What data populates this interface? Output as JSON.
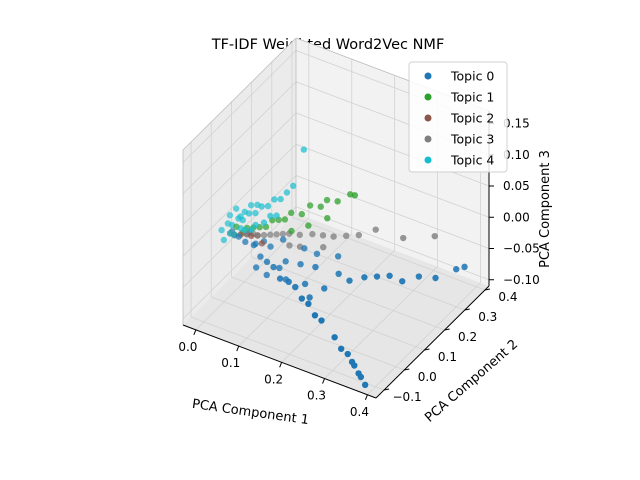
{
  "chart_data": {
    "type": "scatter",
    "projection": "3d",
    "title": "TF-IDF Weighted Word2Vec NMF",
    "xlabel": "PCA Component 1",
    "ylabel": "PCA Component 2",
    "zlabel": "PCA Component 3",
    "xlim": [
      -0.03,
      0.42
    ],
    "ylim": [
      -0.14,
      0.42
    ],
    "zlim": [
      -0.11,
      0.17
    ],
    "xticks": [
      "0.0",
      "0.1",
      "0.2",
      "0.3",
      "0.4"
    ],
    "yticks": [
      "−0.1",
      "0.0",
      "0.1",
      "0.2",
      "0.3",
      "0.4"
    ],
    "zticks": [
      "−0.10",
      "−0.05",
      "0.00",
      "0.05",
      "0.10",
      "0.15"
    ],
    "grid": true,
    "legend_position": "top-right",
    "series": [
      {
        "name": "Topic 0",
        "color": "#1f77b4",
        "points": [
          [
            0.3,
            -0.09,
            -0.06
          ],
          [
            0.32,
            -0.1,
            -0.07
          ],
          [
            0.34,
            -0.11,
            -0.07
          ],
          [
            0.35,
            -0.11,
            -0.08
          ],
          [
            0.36,
            -0.12,
            -0.08
          ],
          [
            0.37,
            -0.12,
            -0.09
          ],
          [
            0.38,
            -0.13,
            -0.09
          ],
          [
            0.39,
            -0.13,
            -0.1
          ],
          [
            0.26,
            -0.07,
            -0.05
          ],
          [
            0.24,
            -0.06,
            -0.05
          ],
          [
            0.22,
            -0.05,
            -0.04
          ],
          [
            0.2,
            -0.04,
            -0.04
          ],
          [
            0.18,
            -0.03,
            -0.03
          ],
          [
            0.16,
            -0.02,
            -0.03
          ],
          [
            0.14,
            -0.02,
            -0.03
          ],
          [
            0.12,
            -0.01,
            -0.02
          ],
          [
            0.1,
            0.0,
            -0.02
          ],
          [
            0.08,
            0.01,
            -0.02
          ],
          [
            0.06,
            0.02,
            -0.01
          ],
          [
            0.04,
            0.02,
            -0.01
          ],
          [
            0.02,
            0.03,
            -0.01
          ],
          [
            0.01,
            0.03,
            -0.01
          ],
          [
            0.0,
            0.04,
            -0.01
          ],
          [
            0.28,
            0.1,
            -0.03
          ],
          [
            0.3,
            0.12,
            -0.03
          ],
          [
            0.32,
            0.14,
            -0.03
          ],
          [
            0.34,
            0.16,
            -0.04
          ],
          [
            0.36,
            0.2,
            -0.04
          ],
          [
            0.38,
            0.24,
            -0.05
          ],
          [
            0.4,
            0.3,
            -0.05
          ],
          [
            0.41,
            0.32,
            -0.05
          ],
          [
            0.12,
            0.05,
            -0.03
          ],
          [
            0.15,
            0.06,
            -0.03
          ],
          [
            0.18,
            0.07,
            -0.03
          ],
          [
            0.08,
            0.06,
            -0.02
          ],
          [
            0.05,
            0.05,
            -0.02
          ],
          [
            0.1,
            0.08,
            -0.01
          ],
          [
            0.14,
            0.1,
            -0.02
          ],
          [
            0.16,
            0.12,
            -0.03
          ],
          [
            0.2,
            0.14,
            -0.03
          ],
          [
            0.22,
            0.1,
            -0.04
          ],
          [
            0.25,
            0.09,
            -0.04
          ],
          [
            0.11,
            0.04,
            -0.04
          ],
          [
            0.13,
            0.03,
            -0.05
          ],
          [
            0.09,
            0.02,
            -0.05
          ],
          [
            0.07,
            0.01,
            -0.04
          ],
          [
            0.17,
            0.04,
            -0.05
          ],
          [
            0.21,
            0.05,
            -0.05
          ],
          [
            0.19,
            0.02,
            -0.06
          ],
          [
            0.06,
            0.07,
            -0.02
          ],
          [
            0.03,
            0.06,
            -0.01
          ]
        ]
      },
      {
        "name": "Topic 1",
        "color": "#2ca02c",
        "points": [
          [
            0.2,
            0.2,
            0.05
          ],
          [
            0.18,
            0.18,
            0.04
          ],
          [
            0.16,
            0.17,
            0.04
          ],
          [
            0.15,
            0.16,
            0.03
          ],
          [
            0.13,
            0.15,
            0.03
          ],
          [
            0.12,
            0.13,
            0.02
          ],
          [
            0.1,
            0.12,
            0.02
          ],
          [
            0.09,
            0.11,
            0.01
          ],
          [
            0.08,
            0.1,
            0.01
          ],
          [
            0.07,
            0.09,
            0.01
          ],
          [
            0.06,
            0.08,
            0.0
          ],
          [
            0.05,
            0.07,
            0.0
          ],
          [
            0.04,
            0.06,
            0.0
          ],
          [
            0.03,
            0.05,
            0.0
          ],
          [
            0.02,
            0.05,
            -0.01
          ],
          [
            0.01,
            0.04,
            0.0
          ],
          [
            0.11,
            0.1,
            0.0
          ],
          [
            0.14,
            0.12,
            0.01
          ],
          [
            0.17,
            0.15,
            0.02
          ],
          [
            0.22,
            0.18,
            0.06
          ]
        ]
      },
      {
        "name": "Topic 2",
        "color": "#8c564b",
        "points": [
          [
            0.02,
            0.04,
            -0.01
          ],
          [
            0.03,
            0.05,
            -0.01
          ],
          [
            0.04,
            0.05,
            -0.01
          ],
          [
            0.05,
            0.06,
            -0.01
          ],
          [
            0.01,
            0.03,
            -0.01
          ],
          [
            0.06,
            0.06,
            -0.02
          ],
          [
            0.0,
            0.03,
            -0.01
          ]
        ]
      },
      {
        "name": "Topic 3",
        "color": "#7f7f7f",
        "points": [
          [
            0.3,
            0.25,
            -0.01
          ],
          [
            0.35,
            0.3,
            -0.01
          ],
          [
            0.25,
            0.22,
            0.0
          ],
          [
            0.22,
            0.2,
            -0.01
          ],
          [
            0.2,
            0.18,
            -0.01
          ],
          [
            0.18,
            0.16,
            -0.01
          ],
          [
            0.16,
            0.15,
            -0.01
          ],
          [
            0.14,
            0.14,
            -0.01
          ],
          [
            0.12,
            0.12,
            -0.01
          ],
          [
            0.1,
            0.11,
            -0.01
          ],
          [
            0.09,
            0.1,
            -0.01
          ],
          [
            0.08,
            0.09,
            -0.01
          ],
          [
            0.07,
            0.08,
            -0.01
          ],
          [
            0.06,
            0.07,
            -0.01
          ],
          [
            0.05,
            0.06,
            -0.01
          ],
          [
            0.04,
            0.06,
            -0.01
          ],
          [
            0.03,
            0.05,
            -0.01
          ],
          [
            0.13,
            0.1,
            -0.02
          ],
          [
            0.11,
            0.09,
            -0.02
          ],
          [
            0.17,
            0.13,
            -0.02
          ]
        ]
      },
      {
        "name": "Topic 4",
        "color": "#17becf",
        "points": [
          [
            0.12,
            0.14,
            0.12
          ],
          [
            0.1,
            0.13,
            0.06
          ],
          [
            0.09,
            0.12,
            0.05
          ],
          [
            0.08,
            0.11,
            0.04
          ],
          [
            0.07,
            0.1,
            0.04
          ],
          [
            0.06,
            0.09,
            0.03
          ],
          [
            0.05,
            0.08,
            0.03
          ],
          [
            0.04,
            0.07,
            0.02
          ],
          [
            0.03,
            0.06,
            0.02
          ],
          [
            0.02,
            0.05,
            0.01
          ],
          [
            0.01,
            0.05,
            0.01
          ],
          [
            0.0,
            0.04,
            0.0
          ],
          [
            -0.01,
            0.04,
            0.0
          ],
          [
            0.0,
            0.03,
            -0.01
          ],
          [
            0.01,
            0.03,
            -0.01
          ],
          [
            0.02,
            0.04,
            0.0
          ],
          [
            0.03,
            0.04,
            0.0
          ],
          [
            0.04,
            0.05,
            0.0
          ],
          [
            0.05,
            0.05,
            0.01
          ],
          [
            0.02,
            0.06,
            0.02
          ],
          [
            0.03,
            0.07,
            0.03
          ],
          [
            0.01,
            0.06,
            0.01
          ],
          [
            -0.01,
            0.05,
            0.01
          ],
          [
            0.0,
            0.06,
            0.02
          ],
          [
            0.06,
            0.07,
            0.01
          ],
          [
            0.07,
            0.08,
            0.02
          ],
          [
            0.04,
            0.08,
            0.03
          ],
          [
            0.08,
            0.09,
            0.02
          ],
          [
            -0.02,
            0.03,
            -0.01
          ],
          [
            -0.01,
            0.02,
            -0.02
          ]
        ]
      }
    ]
  }
}
